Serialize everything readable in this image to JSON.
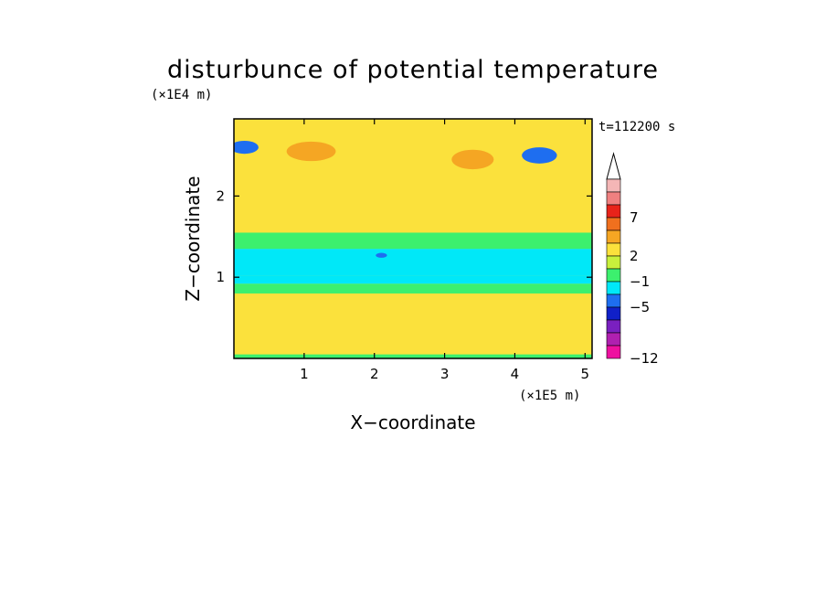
{
  "chart_data": {
    "type": "heatmap",
    "title": "disturbunce of potential temperature",
    "xlabel": "X−coordinate",
    "ylabel": "Z−coordinate",
    "x_unit_label": "(×1E5 m)",
    "y_unit_label": "(×1E4 m)",
    "time_label": "t=112200 s",
    "x_ticks": [
      "1",
      "2",
      "3",
      "4",
      "5"
    ],
    "y_ticks": [
      "1",
      "2"
    ],
    "xlim": [
      0,
      5.1
    ],
    "ylim": [
      0,
      2.95
    ],
    "colorbar": {
      "tick_labels": [
        "7",
        "2",
        "−1",
        "−5",
        "−12"
      ],
      "levels_top_to_bottom": [
        "#f4b6b6",
        "#f08080",
        "#e8231a",
        "#f0701e",
        "#f5a623",
        "#fbe13c",
        "#c8f03c",
        "#3cf06e",
        "#00e8f8",
        "#1e6ef0",
        "#1020c8",
        "#7a20c0",
        "#b020b0",
        "#ee10a0"
      ],
      "extend_top_color": "#ffffff"
    },
    "bands": [
      {
        "z": [
          0.0,
          0.05
        ],
        "color": "#3cf06e"
      },
      {
        "z": [
          0.05,
          0.35
        ],
        "color": "#fbe13c"
      },
      {
        "z": [
          0.35,
          0.8
        ],
        "color": "#fbe13c"
      },
      {
        "z": [
          0.8,
          0.92
        ],
        "color": "#3cf06e"
      },
      {
        "z": [
          0.92,
          1.02
        ],
        "color": "#00e8f8"
      },
      {
        "z": [
          1.02,
          1.35
        ],
        "color": "#00e8f8"
      },
      {
        "z": [
          1.35,
          1.55
        ],
        "color": "#3cf06e"
      },
      {
        "z": [
          1.55,
          2.95
        ],
        "color": "#fbe13c"
      }
    ],
    "blobs": [
      {
        "x": 0.15,
        "z": 2.6,
        "rx": 0.2,
        "rz": 0.08,
        "color": "#1e6ef0"
      },
      {
        "x": 4.35,
        "z": 2.5,
        "rx": 0.25,
        "rz": 0.1,
        "color": "#1e6ef0"
      },
      {
        "x": 1.1,
        "z": 2.55,
        "rx": 0.35,
        "rz": 0.12,
        "color": "#f5a623"
      },
      {
        "x": 3.4,
        "z": 2.45,
        "rx": 0.3,
        "rz": 0.12,
        "color": "#f5a623"
      },
      {
        "x": 2.1,
        "z": 1.27,
        "rx": 0.08,
        "rz": 0.03,
        "color": "#1e6ef0"
      }
    ]
  }
}
